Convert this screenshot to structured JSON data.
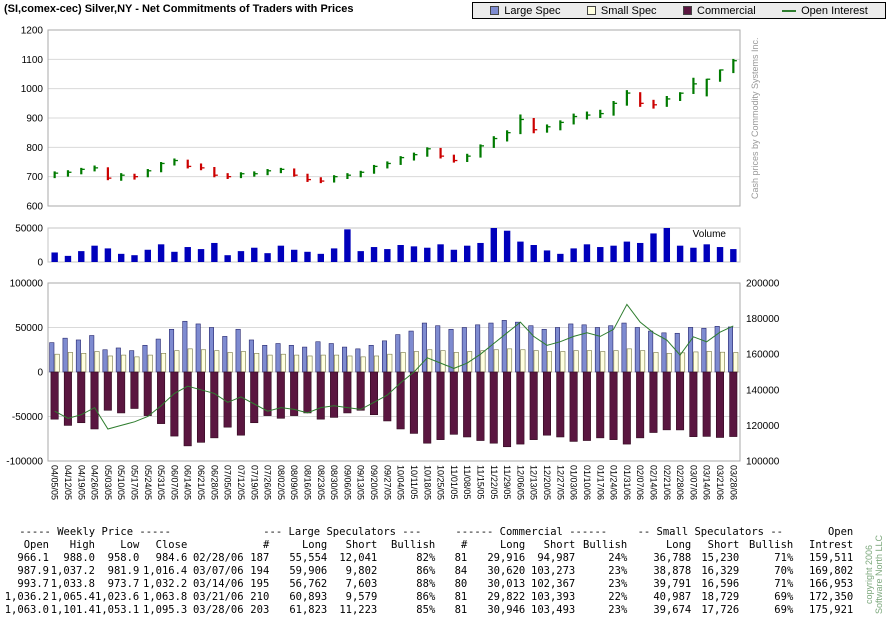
{
  "page": {
    "title": "(SI,comex-cec) Silver,NY - Net Commitments of Traders with Prices",
    "side_note_right": "Cash prices by Commodity Systems Inc.",
    "copyright_line1": "copyright 2006",
    "copyright_line2": "Software North LLC",
    "volume_label": "Volume"
  },
  "legend": {
    "items": [
      {
        "label": "Large Spec",
        "color": "#7e8bd0",
        "type": "square"
      },
      {
        "label": "Small Spec",
        "color": "#ffffe0",
        "type": "square"
      },
      {
        "label": "Commercial",
        "color": "#5a1640",
        "type": "square"
      },
      {
        "label": "Open Interest",
        "color": "#2e7d2e",
        "type": "line"
      }
    ]
  },
  "chart_data": [
    {
      "type": "ohlc",
      "name": "weekly-price",
      "title": "Silver NY weekly price (cents/oz)",
      "ylim": [
        600,
        1200
      ],
      "yticks": [
        600,
        700,
        800,
        900,
        1000,
        1100,
        1200
      ],
      "up_color": "#007a00",
      "down_color": "#cc0000",
      "dates": [
        "04/05/05",
        "04/12/05",
        "04/19/05",
        "04/26/05",
        "05/03/05",
        "05/10/05",
        "05/17/05",
        "05/24/05",
        "05/31/05",
        "06/07/05",
        "06/14/05",
        "06/21/05",
        "06/28/05",
        "07/05/05",
        "07/12/05",
        "07/19/05",
        "07/26/05",
        "08/02/05",
        "08/09/05",
        "08/16/05",
        "08/23/05",
        "08/30/05",
        "09/06/05",
        "09/13/05",
        "09/20/05",
        "09/27/05",
        "10/04/05",
        "10/11/05",
        "10/18/05",
        "10/25/05",
        "11/01/05",
        "11/08/05",
        "11/15/05",
        "11/22/05",
        "11/29/05",
        "12/06/05",
        "12/13/05",
        "12/20/05",
        "12/27/05",
        "01/03/06",
        "01/10/06",
        "01/17/06",
        "01/24/06",
        "01/31/06",
        "02/07/06",
        "02/14/06",
        "02/21/06",
        "02/28/06",
        "03/07/06",
        "03/14/06",
        "03/21/06",
        "03/28/06"
      ],
      "open": [
        700,
        712,
        715,
        725,
        730,
        695,
        705,
        700,
        720,
        745,
        755,
        735,
        730,
        705,
        700,
        710,
        710,
        720,
        725,
        705,
        690,
        685,
        700,
        705,
        715,
        735,
        745,
        765,
        775,
        795,
        770,
        755,
        770,
        805,
        830,
        850,
        895,
        860,
        870,
        885,
        905,
        910,
        915,
        950,
        985,
        950,
        945,
        966.1,
        987.9,
        993.7,
        1036.2,
        1063.0
      ],
      "high": [
        718,
        722,
        730,
        738,
        732,
        712,
        710,
        726,
        750,
        762,
        758,
        745,
        733,
        712,
        715,
        718,
        726,
        730,
        728,
        710,
        698,
        705,
        712,
        720,
        740,
        752,
        770,
        782,
        800,
        798,
        775,
        778,
        810,
        838,
        858,
        912,
        900,
        878,
        892,
        915,
        922,
        928,
        958,
        995,
        988,
        962,
        975,
        988.0,
        1037.2,
        1033.8,
        1065.4,
        1101.4
      ],
      "low": [
        695,
        700,
        708,
        718,
        688,
        686,
        690,
        698,
        715,
        738,
        728,
        722,
        698,
        692,
        695,
        700,
        705,
        712,
        700,
        682,
        678,
        680,
        692,
        698,
        710,
        728,
        740,
        755,
        768,
        762,
        748,
        750,
        765,
        798,
        820,
        845,
        848,
        850,
        858,
        878,
        895,
        900,
        908,
        942,
        938,
        932,
        938,
        958.0,
        981.9,
        973.7,
        1023.6,
        1053.1
      ],
      "close": [
        712,
        715,
        725,
        730,
        695,
        705,
        700,
        720,
        745,
        755,
        735,
        730,
        705,
        700,
        710,
        710,
        720,
        725,
        705,
        690,
        685,
        700,
        705,
        715,
        735,
        745,
        765,
        775,
        795,
        770,
        755,
        770,
        805,
        830,
        850,
        895,
        860,
        870,
        885,
        905,
        910,
        915,
        950,
        985,
        950,
        945,
        965,
        984.6,
        1016.4,
        1032.2,
        1063.8,
        1095.3
      ]
    },
    {
      "type": "bar",
      "name": "volume",
      "label": "Volume",
      "ylim": [
        0,
        50000
      ],
      "yticks": [
        0,
        50000
      ],
      "color": "#0000bb",
      "values": [
        14000,
        9000,
        16000,
        24000,
        20000,
        12000,
        10000,
        18000,
        26000,
        15000,
        22000,
        19000,
        28000,
        10000,
        16000,
        21000,
        13000,
        24000,
        18000,
        15000,
        12000,
        20000,
        48000,
        16000,
        22000,
        19000,
        25000,
        23000,
        21000,
        26000,
        18000,
        24000,
        28000,
        50000,
        46000,
        30000,
        25000,
        17000,
        12000,
        20000,
        26000,
        22000,
        24000,
        30000,
        28000,
        42000,
        50000,
        24000,
        21000,
        26000,
        22000,
        19000
      ]
    },
    {
      "type": "bar+line",
      "name": "net-commitments-of-traders",
      "left_ylim": [
        -100000,
        100000
      ],
      "left_yticks": [
        -100000,
        -50000,
        0,
        50000,
        100000
      ],
      "right_ylim": [
        100000,
        200000
      ],
      "right_yticks": [
        100000,
        120000,
        140000,
        160000,
        180000,
        200000
      ],
      "right_axis_color": "#2e7d2e",
      "series": [
        {
          "name": "Large Spec",
          "color": "#7e8bd0",
          "values": [
            33000,
            38000,
            36000,
            41000,
            25000,
            27000,
            24000,
            30000,
            37000,
            48000,
            57000,
            54000,
            50000,
            40000,
            48000,
            36000,
            30000,
            32000,
            30000,
            28000,
            34000,
            32000,
            28000,
            26000,
            30000,
            35000,
            42000,
            46000,
            55000,
            52000,
            48000,
            50000,
            53000,
            55000,
            58000,
            56000,
            52000,
            48000,
            50000,
            54000,
            53000,
            50000,
            52000,
            55000,
            50000,
            46000,
            44000,
            43513,
            50104,
            49159,
            51314,
            50600
          ]
        },
        {
          "name": "Small Spec",
          "color": "#ffffe0",
          "values": [
            20000,
            22000,
            21000,
            23000,
            18000,
            19000,
            17000,
            19000,
            21000,
            24000,
            26000,
            25000,
            24000,
            22000,
            23000,
            21000,
            19000,
            20000,
            19000,
            18000,
            19000,
            19000,
            18000,
            17000,
            18000,
            20000,
            22000,
            23000,
            25000,
            24000,
            22000,
            23000,
            24000,
            25000,
            26000,
            25000,
            24000,
            23000,
            23000,
            24000,
            24000,
            23000,
            24000,
            26000,
            24000,
            22000,
            21000,
            21558,
            22549,
            23195,
            22258,
            21948
          ]
        },
        {
          "name": "Commercial",
          "color": "#5a1640",
          "values": [
            -53000,
            -60000,
            -57000,
            -64000,
            -43000,
            -46000,
            -41000,
            -49000,
            -58000,
            -72000,
            -83000,
            -79000,
            -74000,
            -62000,
            -71000,
            -57000,
            -49000,
            -52000,
            -49000,
            -46000,
            -53000,
            -51000,
            -46000,
            -43000,
            -48000,
            -55000,
            -64000,
            -69000,
            -80000,
            -76000,
            -70000,
            -73000,
            -77000,
            -80000,
            -84000,
            -81000,
            -76000,
            -71000,
            -73000,
            -78000,
            -77000,
            -74000,
            -76000,
            -81000,
            -74000,
            -68000,
            -65000,
            -65071,
            -72653,
            -72354,
            -73571,
            -72547
          ]
        },
        {
          "name": "Open Interest",
          "type": "line",
          "axis": "right",
          "color": "#2e7d2e",
          "values": [
            128000,
            124000,
            126000,
            130000,
            118000,
            120000,
            122000,
            125000,
            131000,
            138000,
            142000,
            140000,
            138000,
            133000,
            136000,
            132000,
            128000,
            130000,
            129000,
            127000,
            130000,
            131000,
            130000,
            129000,
            133000,
            137000,
            144000,
            150000,
            158000,
            155000,
            152000,
            155000,
            160000,
            166000,
            172000,
            178000,
            170000,
            165000,
            167000,
            170000,
            172000,
            170000,
            174000,
            188000,
            178000,
            172000,
            168000,
            159511,
            169802,
            166953,
            172350,
            175921
          ]
        }
      ]
    }
  ],
  "table": {
    "group_headers": [
      {
        "label": "----- Weekly Price -----",
        "span": 4
      },
      {
        "label": "",
        "span": 1
      },
      {
        "label": "--- Large Speculators ---",
        "span": 4
      },
      {
        "label": "------ Commercial ------",
        "span": 4
      },
      {
        "label": "-- Small Speculators --",
        "span": 3
      },
      {
        "label": "Open",
        "span": 1
      }
    ],
    "col_headers": [
      "Open",
      "High",
      "Low",
      "Close",
      "",
      "#",
      "Long",
      "Short",
      "Bullish",
      "#",
      "Long",
      "Short",
      "Bullish",
      "Long",
      "Short",
      "Bullish",
      "Intrest"
    ],
    "rows": [
      [
        "966.1",
        "988.0",
        "958.0",
        "984.6",
        "02/28/06",
        "187",
        "55,554",
        "12,041",
        "82%",
        "81",
        "29,916",
        "94,987",
        "24%",
        "36,788",
        "15,230",
        "71%",
        "159,511"
      ],
      [
        "987.9",
        "1,037.2",
        "981.9",
        "1,016.4",
        "03/07/06",
        "194",
        "59,906",
        "9,802",
        "86%",
        "84",
        "30,620",
        "103,273",
        "23%",
        "38,878",
        "16,329",
        "70%",
        "169,802"
      ],
      [
        "993.7",
        "1,033.8",
        "973.7",
        "1,032.2",
        "03/14/06",
        "195",
        "56,762",
        "7,603",
        "88%",
        "80",
        "30,013",
        "102,367",
        "23%",
        "39,791",
        "16,596",
        "71%",
        "166,953"
      ],
      [
        "1,036.2",
        "1,065.4",
        "1,023.6",
        "1,063.8",
        "03/21/06",
        "210",
        "60,893",
        "9,579",
        "86%",
        "81",
        "29,822",
        "103,393",
        "22%",
        "40,987",
        "18,729",
        "69%",
        "172,350"
      ],
      [
        "1,063.0",
        "1,101.4",
        "1,053.1",
        "1,095.3",
        "03/28/06",
        "203",
        "61,823",
        "11,223",
        "85%",
        "81",
        "30,946",
        "103,493",
        "23%",
        "39,674",
        "17,726",
        "69%",
        "175,921"
      ]
    ]
  }
}
